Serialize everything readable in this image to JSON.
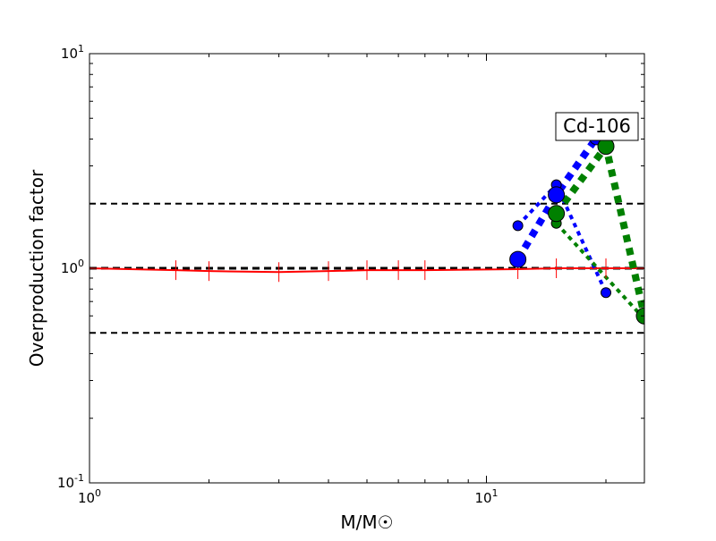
{
  "chart_data": {
    "type": "line",
    "title": "",
    "xlabel": "M/M☉",
    "ylabel": "Overproduction factor",
    "xscale": "log",
    "yscale": "log",
    "xlim": [
      1,
      25
    ],
    "ylim": [
      0.1,
      10
    ],
    "x_ticks": [
      {
        "value": 1,
        "base": "10",
        "exp": "0"
      },
      {
        "value": 10,
        "base": "10",
        "exp": "1"
      }
    ],
    "y_ticks": [
      {
        "value": 0.1,
        "base": "10",
        "exp": "-1"
      },
      {
        "value": 1,
        "base": "10",
        "exp": "0"
      },
      {
        "value": 10,
        "base": "10",
        "exp": "1"
      }
    ],
    "annotation": "Cd-106",
    "grid": false,
    "reference_lines": [
      {
        "y": 2.0,
        "style": "dashed",
        "color": "#000000"
      },
      {
        "y": 1.0,
        "style": "dashed",
        "color": "#000000"
      },
      {
        "y": 0.5,
        "style": "dashed",
        "color": "#000000"
      }
    ],
    "series": [
      {
        "color": "#ff0000",
        "style": "solid",
        "marker": "vertical-tick",
        "x": [
          1.0,
          1.65,
          2.0,
          3.0,
          4.0,
          5.0,
          6.0,
          7.0,
          12.0,
          15.0,
          20.0,
          25.0
        ],
        "y": [
          1.0,
          0.98,
          0.97,
          0.96,
          0.97,
          0.98,
          0.98,
          0.98,
          0.99,
          1.0,
          1.0,
          1.0
        ]
      },
      {
        "color": "#0000ff",
        "style": "dotted-thin",
        "marker": "circle-small",
        "x": [
          12.0,
          15.0,
          20.0
        ],
        "y": [
          1.58,
          2.45,
          0.77
        ]
      },
      {
        "color": "#0000ff",
        "style": "dotted-thick",
        "marker": "circle-large",
        "x": [
          12.0,
          15.0,
          19.0
        ],
        "y": [
          1.1,
          2.2,
          4.1
        ]
      },
      {
        "color": "#008000",
        "style": "dotted-thin",
        "marker": "circle-small",
        "x": [
          15.0,
          25.0
        ],
        "y": [
          1.62,
          0.58
        ]
      },
      {
        "color": "#008000",
        "style": "dotted-thick",
        "marker": "circle-large",
        "x": [
          15.0,
          20.0,
          25.0
        ],
        "y": [
          1.8,
          3.7,
          0.6
        ]
      }
    ]
  }
}
